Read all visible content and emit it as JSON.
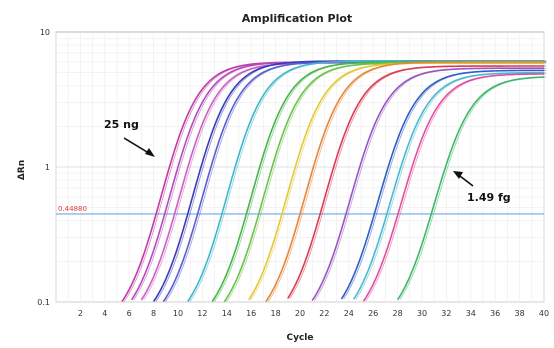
{
  "chart_data": {
    "type": "line",
    "title": "Amplification Plot",
    "xlabel": "Cycle",
    "ylabel": "ΔRn",
    "xlim": [
      0,
      40
    ],
    "ylim": [
      0.1,
      10
    ],
    "yscale": "log",
    "x_ticks": [
      "2",
      "4",
      "6",
      "8",
      "10",
      "12",
      "14",
      "16",
      "18",
      "20",
      "22",
      "24",
      "26",
      "28",
      "30",
      "32",
      "34",
      "36",
      "38",
      "40"
    ],
    "y_ticks": [
      "0.1",
      "1",
      "10"
    ],
    "grid": true,
    "threshold": {
      "label": "0.44880",
      "value": 0.4488,
      "color": "#8ab8e6"
    },
    "annotations": [
      {
        "text": "25 ng",
        "target": "first-curve"
      },
      {
        "text": "1.49 fg",
        "target": "last-curve"
      }
    ],
    "series": [
      {
        "color": "#c23aa6",
        "midpoint": 8.6,
        "plateau": 6.0,
        "slope": 1.55
      },
      {
        "color": "#b44bbb",
        "midpoint": 9.3,
        "plateau": 6.0,
        "slope": 1.55
      },
      {
        "color": "#cc5fc4",
        "midpoint": 10.1,
        "plateau": 5.9,
        "slope": 1.55
      },
      {
        "color": "#3a3cb8",
        "midpoint": 11.2,
        "plateau": 6.1,
        "slope": 1.55
      },
      {
        "color": "#5a5fd0",
        "midpoint": 12.0,
        "plateau": 6.0,
        "slope": 1.55
      },
      {
        "color": "#3fb7c9",
        "midpoint": 14.0,
        "plateau": 6.1,
        "slope": 1.55
      },
      {
        "color": "#47b54a",
        "midpoint": 16.0,
        "plateau": 6.0,
        "slope": 1.55
      },
      {
        "color": "#6cc24a",
        "midpoint": 17.0,
        "plateau": 5.9,
        "slope": 1.55
      },
      {
        "color": "#e1c83a",
        "midpoint": 18.9,
        "plateau": 5.9,
        "slope": 1.55
      },
      {
        "color": "#e8863a",
        "midpoint": 20.4,
        "plateau": 6.0,
        "slope": 1.55
      },
      {
        "color": "#da3b52",
        "midpoint": 22.0,
        "plateau": 5.6,
        "slope": 1.55
      },
      {
        "color": "#9a55c2",
        "midpoint": 24.1,
        "plateau": 5.4,
        "slope": 1.55
      },
      {
        "color": "#2f5fc4",
        "midpoint": 26.4,
        "plateau": 5.2,
        "slope": 1.55
      },
      {
        "color": "#4ab9d0",
        "midpoint": 27.4,
        "plateau": 5.0,
        "slope": 1.55
      },
      {
        "color": "#e14fa0",
        "midpoint": 28.3,
        "plateau": 4.9,
        "slope": 1.55
      },
      {
        "color": "#3fb76a",
        "midpoint": 31.0,
        "plateau": 4.7,
        "slope": 1.55
      }
    ]
  }
}
